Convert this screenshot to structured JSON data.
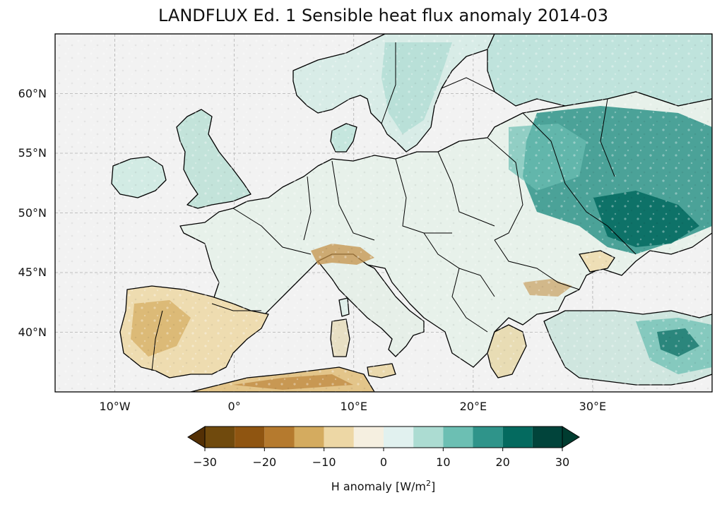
{
  "title": "LANDFLUX Ed. 1 Sensible heat flux anomaly 2014-03",
  "map": {
    "projection": "PlateCarree",
    "lon_range": [
      -15,
      40
    ],
    "lat_range": [
      35,
      65
    ],
    "grid": true,
    "lat_ticks": [
      {
        "value": 40,
        "label": "40°N"
      },
      {
        "value": 45,
        "label": "45°N"
      },
      {
        "value": 50,
        "label": "50°N"
      },
      {
        "value": 55,
        "label": "55°N"
      },
      {
        "value": 60,
        "label": "60°N"
      }
    ],
    "lon_ticks": [
      {
        "value": -10,
        "label": "10°W"
      },
      {
        "value": 0,
        "label": "0°"
      },
      {
        "value": 10,
        "label": "10°E"
      },
      {
        "value": 20,
        "label": "20°E"
      },
      {
        "value": 30,
        "label": "30°E"
      }
    ],
    "ocean_color": "#f2f2f2",
    "coastline_color": "#000000"
  },
  "colorbar": {
    "label_text": "H anomaly [W/m",
    "label_sup": "2",
    "label_end": "]",
    "range": [
      -30,
      30
    ],
    "extend": "both",
    "tick_labels": [
      {
        "value": -30,
        "label": "−30"
      },
      {
        "value": -20,
        "label": "−20"
      },
      {
        "value": -10,
        "label": "−10"
      },
      {
        "value": 0,
        "label": "0"
      },
      {
        "value": 10,
        "label": "10"
      },
      {
        "value": 20,
        "label": "20"
      },
      {
        "value": 30,
        "label": "30"
      }
    ],
    "bins": [
      {
        "from": -30,
        "to": -25,
        "color": "#704a0d"
      },
      {
        "from": -25,
        "to": -20,
        "color": "#8f5511"
      },
      {
        "from": -20,
        "to": -15,
        "color": "#b57a2e"
      },
      {
        "from": -15,
        "to": -10,
        "color": "#d4ab5f"
      },
      {
        "from": -10,
        "to": -5,
        "color": "#edd7a5"
      },
      {
        "from": -5,
        "to": 0,
        "color": "#f5efe0"
      },
      {
        "from": 0,
        "to": 5,
        "color": "#e1f1ef"
      },
      {
        "from": 5,
        "to": 10,
        "color": "#acdcd2"
      },
      {
        "from": 10,
        "to": 15,
        "color": "#6cbfb3"
      },
      {
        "from": 15,
        "to": 20,
        "color": "#2f948a"
      },
      {
        "from": 20,
        "to": 25,
        "color": "#046a5f"
      },
      {
        "from": 25,
        "to": 30,
        "color": "#01443b"
      }
    ],
    "under_color": "#543005",
    "over_color": "#003c30"
  }
}
